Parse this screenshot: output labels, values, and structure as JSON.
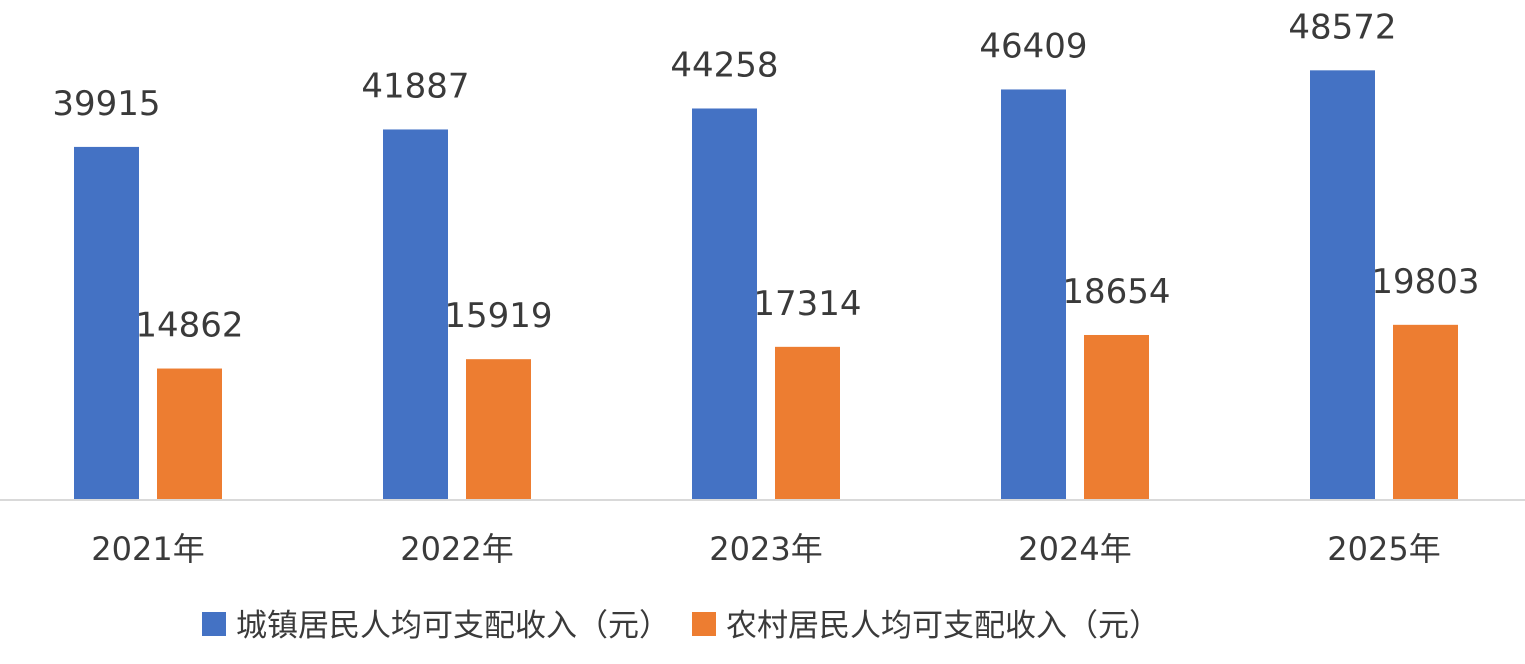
{
  "chart_data": {
    "type": "bar",
    "categories": [
      "2021年",
      "2022年",
      "2023年",
      "2024年",
      "2025年"
    ],
    "series": [
      {
        "name": "城镇居民人均可支配收入（元）",
        "values": [
          39915,
          41887,
          44258,
          46409,
          48572
        ],
        "color": "#4472C4"
      },
      {
        "name": "农村居民人均可支配收入（元）",
        "values": [
          14862,
          15919,
          17314,
          18654,
          19803
        ],
        "color": "#ED7D31"
      }
    ],
    "title": "",
    "xlabel": "",
    "ylabel": "",
    "ylim": [
      0,
      52000
    ],
    "grid": false,
    "legend": "bottom",
    "axis_color": "#d9d9d9"
  }
}
